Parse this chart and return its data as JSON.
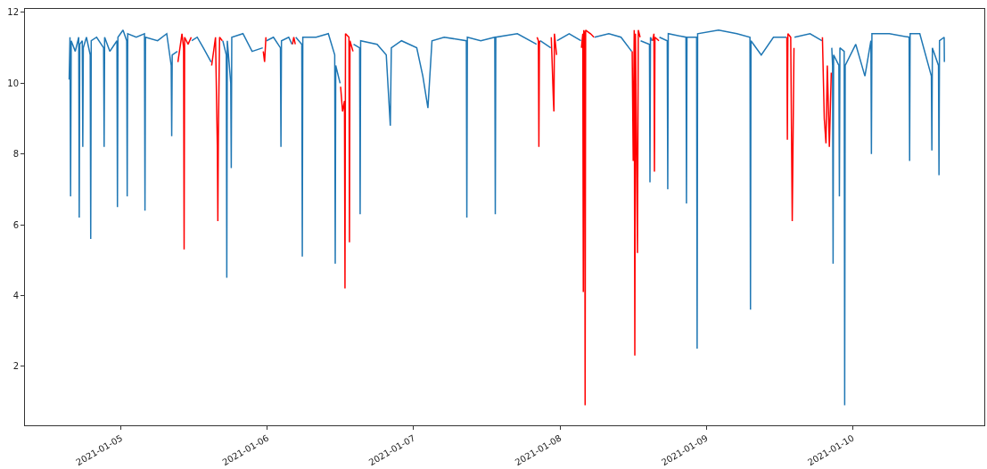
{
  "chart_data": {
    "type": "line",
    "xlim": [
      "2021-01-04T08:15",
      "2021-01-10T21:35"
    ],
    "ylim": [
      0.33,
      12.1
    ],
    "xticks": [
      "2021-01-05",
      "2021-01-06",
      "2021-01-07",
      "2021-01-08",
      "2021-01-09",
      "2021-01-10"
    ],
    "yticks": [
      2,
      4,
      6,
      8,
      10,
      12
    ],
    "marker": "none",
    "line_style": "solid",
    "series": [
      {
        "color": "#1f77b4",
        "x": [
          "2021-01-04T15:30",
          "2021-01-04T15:38",
          "2021-01-04T15:44",
          "2021-01-04T15:50",
          "2021-01-04T16:30",
          "2021-01-04T17:04",
          "2021-01-04T17:09",
          "2021-01-04T17:14",
          "2021-01-04T17:39",
          "2021-01-04T17:44",
          "2021-01-04T17:49",
          "2021-01-04T18:20",
          "2021-01-04T18:57",
          "2021-01-04T19:02",
          "2021-01-04T19:07",
          "2021-01-04T20:00",
          "2021-01-04T21:09",
          "2021-01-04T21:14",
          "2021-01-04T21:19",
          "2021-01-04T22:10",
          "2021-01-04T23:20",
          "2021-01-04T23:25",
          "2021-01-04T23:30",
          "2021-01-05T00:20",
          "2021-01-05T00:56",
          "2021-01-05T01:01",
          "2021-01-05T01:06",
          "2021-01-05T02:30",
          "2021-01-05T03:51",
          "2021-01-05T03:56",
          "2021-01-05T04:01",
          "2021-01-05T06:00",
          "2021-01-05T07:30",
          "2021-01-05T08:14",
          "2021-01-05T08:19",
          "2021-01-05T08:24",
          "2021-01-05T09:15",
          "2021-01-05T09:18",
          "2021-01-05T11:36",
          "2021-01-05T12:30",
          "2021-01-05T13:30",
          "2021-01-05T14:47",
          "2021-01-05T14:50",
          "2021-01-05T16:42",
          "2021-01-05T17:16",
          "2021-01-05T17:21",
          "2021-01-05T17:26",
          "2021-01-05T18:00",
          "2021-01-05T18:05",
          "2021-01-05T18:10",
          "2021-01-05T20:00",
          "2021-01-05T21:30",
          "2021-01-05T23:15",
          "2021-01-05T23:18",
          "2021-01-05T23:51",
          "2021-01-06T01:00",
          "2021-01-06T02:09",
          "2021-01-06T02:14",
          "2021-01-06T02:19",
          "2021-01-06T03:30",
          "2021-01-06T04:03",
          "2021-01-06T04:06",
          "2021-01-06T04:40",
          "2021-01-06T05:39",
          "2021-01-06T05:44",
          "2021-01-06T05:49",
          "2021-01-06T08:00",
          "2021-01-06T10:00",
          "2021-01-06T11:03",
          "2021-01-06T11:08",
          "2021-01-06T11:13",
          "2021-01-06T11:56",
          "2021-01-06T11:59",
          "2021-01-06T14:08",
          "2021-01-06T15:08",
          "2021-01-06T15:13",
          "2021-01-06T15:18",
          "2021-01-06T18:00",
          "2021-01-06T19:30",
          "2021-01-06T20:10",
          "2021-01-06T20:20",
          "2021-01-06T22:00",
          "2021-01-07T00:30",
          "2021-01-07T01:30",
          "2021-01-07T02:20",
          "2021-01-07T03:00",
          "2021-01-07T05:00",
          "2021-01-07T08:38",
          "2021-01-07T08:43",
          "2021-01-07T08:48",
          "2021-01-07T11:00",
          "2021-01-07T13:18",
          "2021-01-07T13:23",
          "2021-01-07T13:28",
          "2021-01-07T17:00",
          "2021-01-07T20:09",
          "2021-01-07T20:12",
          "2021-01-07T20:45",
          "2021-01-07T22:29",
          "2021-01-07T22:32",
          "2021-01-07T23:31",
          "2021-01-08T01:30",
          "2021-01-08T03:26",
          "2021-01-08T03:29",
          "2021-01-08T05:39",
          "2021-01-08T08:00",
          "2021-01-08T10:00",
          "2021-01-08T11:45",
          "2021-01-08T11:48",
          "2021-01-08T13:13",
          "2021-01-08T14:40",
          "2021-01-08T14:45",
          "2021-01-08T14:50",
          "2021-01-08T15:06",
          "2021-01-08T15:09",
          "2021-01-08T16:18",
          "2021-01-08T17:35",
          "2021-01-08T17:40",
          "2021-01-08T17:45",
          "2021-01-08T20:39",
          "2021-01-08T20:44",
          "2021-01-08T20:49",
          "2021-01-08T22:24",
          "2021-01-08T22:29",
          "2021-01-08T22:34",
          "2021-01-09T02:00",
          "2021-01-09T05:00",
          "2021-01-09T07:09",
          "2021-01-09T07:14",
          "2021-01-09T07:19",
          "2021-01-09T09:00",
          "2021-01-09T11:00",
          "2021-01-09T13:07",
          "2021-01-09T13:10",
          "2021-01-09T14:27",
          "2021-01-09T17:00",
          "2021-01-09T18:57",
          "2021-01-09T19:00",
          "2021-01-09T20:34",
          "2021-01-09T20:42",
          "2021-01-09T20:47",
          "2021-01-09T20:52",
          "2021-01-09T21:44",
          "2021-01-09T21:49",
          "2021-01-09T21:54",
          "2021-01-09T22:36",
          "2021-01-09T22:41",
          "2021-01-09T22:46",
          "2021-01-10T00:30",
          "2021-01-10T02:00",
          "2021-01-10T02:59",
          "2021-01-10T03:04",
          "2021-01-10T03:09",
          "2021-01-10T06:00",
          "2021-01-10T09:15",
          "2021-01-10T09:20",
          "2021-01-10T09:25",
          "2021-01-10T11:00",
          "2021-01-10T12:54",
          "2021-01-10T12:59",
          "2021-01-10T13:04",
          "2021-01-10T14:04",
          "2021-01-10T14:09",
          "2021-01-10T14:14",
          "2021-01-10T15:00",
          "2021-01-10T15:02"
        ],
        "values": [
          10.1,
          11.3,
          6.8,
          11.2,
          10.9,
          11.3,
          6.2,
          11.1,
          11.2,
          8.2,
          11.0,
          11.3,
          10.8,
          5.6,
          11.2,
          11.3,
          11.0,
          8.2,
          11.3,
          10.9,
          11.2,
          6.5,
          11.3,
          11.5,
          11.2,
          6.8,
          11.4,
          11.3,
          11.4,
          6.4,
          11.3,
          11.2,
          11.4,
          10.5,
          8.5,
          10.8,
          10.9,
          null,
          11.2,
          11.3,
          11.0,
          10.6,
          null,
          11.2,
          10.8,
          4.5,
          11.2,
          10.0,
          7.6,
          11.3,
          11.4,
          10.9,
          11.0,
          null,
          11.2,
          11.3,
          11.0,
          8.2,
          11.2,
          11.3,
          11.1,
          null,
          11.3,
          11.1,
          5.1,
          11.3,
          11.3,
          11.4,
          10.8,
          4.9,
          10.5,
          10.0,
          null,
          11.1,
          11.0,
          6.3,
          11.2,
          11.1,
          10.8,
          8.8,
          11.0,
          11.2,
          11.0,
          10.2,
          9.3,
          11.2,
          11.3,
          11.2,
          6.2,
          11.3,
          11.2,
          11.3,
          6.3,
          11.3,
          11.4,
          11.1,
          null,
          11.2,
          11.0,
          null,
          11.2,
          11.4,
          11.2,
          null,
          11.3,
          11.4,
          11.3,
          10.9,
          null,
          11.2,
          11.1,
          7.2,
          11.3,
          11.2,
          null,
          11.3,
          11.2,
          7.0,
          11.4,
          11.3,
          6.6,
          11.3,
          11.3,
          2.5,
          11.4,
          11.5,
          11.4,
          11.3,
          3.6,
          11.2,
          10.8,
          11.3,
          11.3,
          null,
          11.3,
          11.4,
          11.2,
          null,
          11.0,
          10.5,
          4.9,
          10.8,
          10.5,
          6.8,
          11.0,
          10.9,
          0.9,
          10.5,
          11.1,
          10.2,
          11.2,
          8.0,
          11.4,
          11.4,
          11.3,
          7.8,
          11.4,
          11.4,
          10.2,
          8.1,
          11.0,
          10.5,
          7.4,
          11.2,
          11.3,
          10.6
        ]
      },
      {
        "color": "#ff0000",
        "x": [
          "2021-01-05T09:20",
          "2021-01-05T10:00",
          "2021-01-05T10:16",
          "2021-01-05T10:21",
          "2021-01-05T10:26",
          "2021-01-05T11:00",
          "2021-01-05T11:31",
          "2021-01-05T11:33",
          "2021-01-05T14:52",
          "2021-01-05T15:30",
          "2021-01-05T15:48",
          "2021-01-05T15:53",
          "2021-01-05T15:58",
          "2021-01-05T16:10",
          "2021-01-05T16:37",
          "2021-01-05T16:39",
          "2021-01-05T23:20",
          "2021-01-05T23:33",
          "2021-01-05T23:46",
          "2021-01-05T23:48",
          "2021-01-06T04:08",
          "2021-01-06T04:20",
          "2021-01-06T04:35",
          "2021-01-06T04:37",
          "2021-01-06T12:01",
          "2021-01-06T12:20",
          "2021-01-06T12:39",
          "2021-01-06T12:44",
          "2021-01-06T12:49",
          "2021-01-06T13:23",
          "2021-01-06T13:28",
          "2021-01-06T13:33",
          "2021-01-06T14:03",
          "2021-01-06T14:05",
          "2021-01-07T20:14",
          "2021-01-07T20:27",
          "2021-01-07T20:32",
          "2021-01-07T20:37",
          "2021-01-07T20:40",
          "2021-01-07T20:42",
          "2021-01-07T22:34",
          "2021-01-07T22:55",
          "2021-01-07T23:00",
          "2021-01-07T23:05",
          "2021-01-07T23:26",
          "2021-01-07T23:28",
          "2021-01-08T03:31",
          "2021-01-08T03:44",
          "2021-01-08T03:49",
          "2021-01-08T03:54",
          "2021-01-08T04:02",
          "2021-01-08T04:07",
          "2021-01-08T04:12",
          "2021-01-08T05:00",
          "2021-01-08T05:34",
          "2021-01-08T05:36",
          "2021-01-08T11:50",
          "2021-01-08T12:00",
          "2021-01-08T12:10",
          "2021-01-08T12:16",
          "2021-01-08T12:22",
          "2021-01-08T12:42",
          "2021-01-08T12:50",
          "2021-01-08T13:08",
          "2021-01-08T13:10",
          "2021-01-08T15:11",
          "2021-01-08T15:24",
          "2021-01-08T15:29",
          "2021-01-08T15:34",
          "2021-01-08T16:13",
          "2021-01-08T16:15",
          "2021-01-09T13:12",
          "2021-01-09T13:17",
          "2021-01-09T13:22",
          "2021-01-09T13:50",
          "2021-01-09T14:05",
          "2021-01-09T14:22",
          "2021-01-09T14:24",
          "2021-01-09T19:02",
          "2021-01-09T19:20",
          "2021-01-09T19:37",
          "2021-01-09T19:50",
          "2021-01-09T20:10",
          "2021-01-09T20:29"
        ],
        "values": [
          10.6,
          11.4,
          11.0,
          5.3,
          11.3,
          11.1,
          11.3,
          null,
          10.5,
          11.3,
          8.2,
          6.1,
          8.5,
          11.3,
          11.2,
          null,
          10.9,
          10.6,
          11.3,
          null,
          11.1,
          11.3,
          11.1,
          null,
          9.9,
          9.2,
          9.5,
          4.2,
          11.4,
          11.3,
          5.5,
          11.2,
          10.9,
          null,
          11.3,
          11.2,
          8.2,
          11.1,
          11.2,
          null,
          11.3,
          9.5,
          9.2,
          11.4,
          10.8,
          null,
          11.0,
          11.4,
          4.1,
          11.5,
          11.4,
          0.9,
          11.5,
          11.4,
          11.3,
          null,
          10.9,
          7.8,
          11.5,
          2.3,
          11.4,
          5.2,
          11.5,
          11.3,
          null,
          11.2,
          11.4,
          7.5,
          11.3,
          11.2,
          null,
          11.3,
          8.4,
          11.4,
          11.3,
          6.1,
          11.0,
          null,
          11.3,
          9.0,
          8.3,
          10.5,
          8.2,
          10.3
        ]
      }
    ]
  }
}
